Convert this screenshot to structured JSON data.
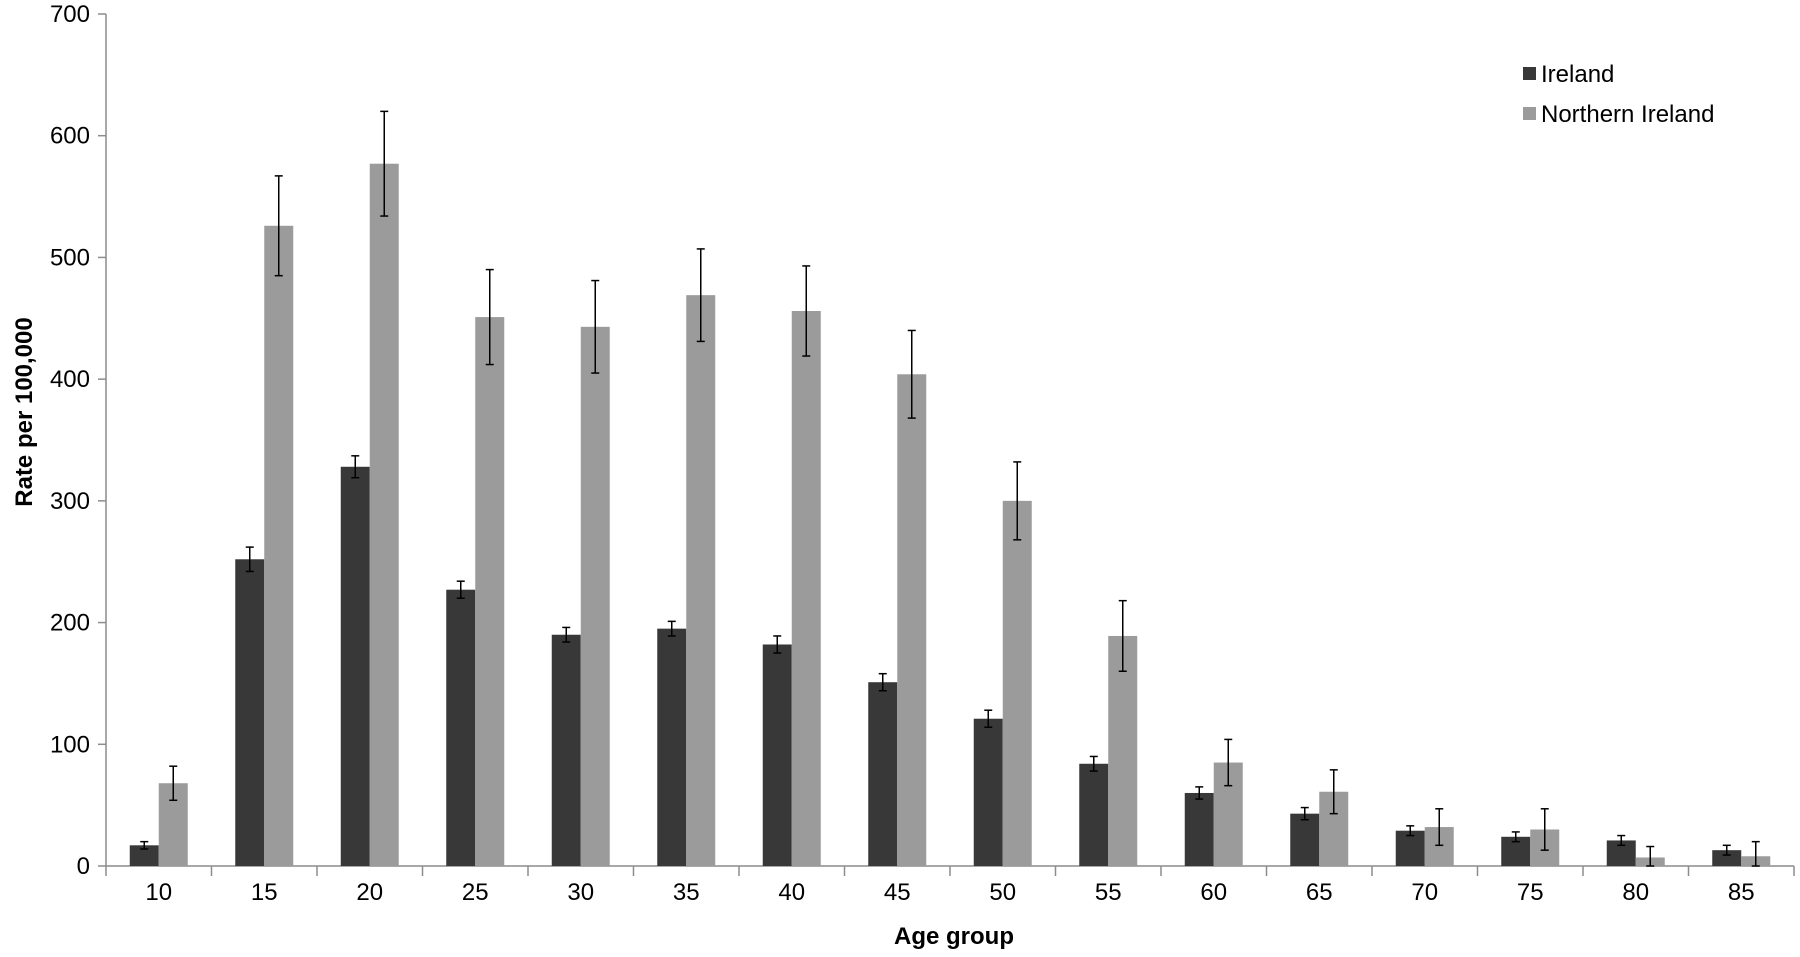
{
  "chart_data": {
    "type": "bar",
    "title": "",
    "xlabel": "Age group",
    "ylabel": "Rate per 100,000",
    "ylim": [
      0,
      700
    ],
    "yticks": [
      "0",
      "100",
      "200",
      "300",
      "400",
      "500",
      "600",
      "700"
    ],
    "categories": [
      "10",
      "15",
      "20",
      "25",
      "30",
      "35",
      "40",
      "45",
      "50",
      "55",
      "60",
      "65",
      "70",
      "75",
      "80",
      "85"
    ],
    "grid": false,
    "legend_position": "top-right",
    "series": [
      {
        "name": "Ireland",
        "color": "#383838",
        "values": [
          17,
          252,
          328,
          227,
          190,
          195,
          182,
          151,
          121,
          84,
          60,
          43,
          29,
          24,
          21,
          13
        ],
        "error": [
          3,
          10,
          9,
          7,
          6,
          6,
          7,
          7,
          7,
          6,
          5,
          5,
          4,
          4,
          4,
          4
        ]
      },
      {
        "name": "Northern Ireland",
        "color": "#9b9b9b",
        "values": [
          68,
          526,
          577,
          451,
          443,
          469,
          456,
          404,
          300,
          189,
          85,
          61,
          32,
          30,
          7,
          8
        ],
        "error": [
          14,
          41,
          43,
          39,
          38,
          38,
          37,
          36,
          32,
          29,
          19,
          18,
          15,
          17,
          9,
          12
        ]
      }
    ]
  }
}
